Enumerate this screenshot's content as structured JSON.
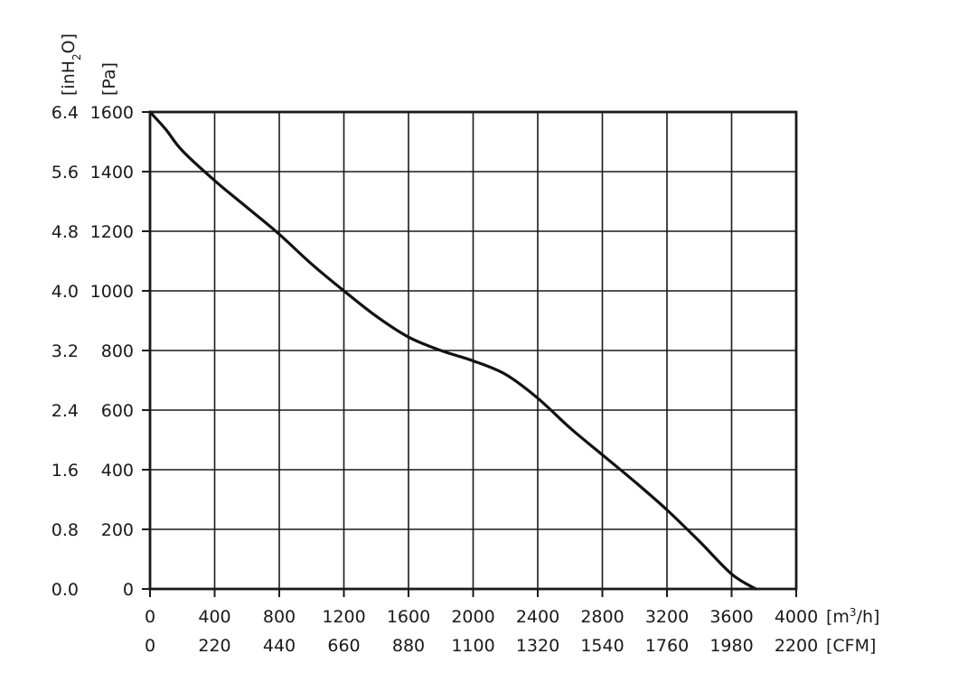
{
  "chart_data": {
    "type": "line",
    "x_unit": "[m³/h]",
    "x_unit_base": "[m",
    "x_unit_sup": "3",
    "x_unit_tail": "/h]",
    "x2_unit": "[CFM]",
    "y_unit": "[Pa]",
    "y2_unit": "[inH₂O]",
    "y2_unit_base": "[inH",
    "y2_unit_sub": "2",
    "y2_unit_tail": "O]",
    "xlim": [
      0,
      4000
    ],
    "ylim": [
      0,
      1600
    ],
    "x_ticks": [
      "0",
      "400",
      "800",
      "1200",
      "1600",
      "2000",
      "2400",
      "2800",
      "3200",
      "3600",
      "4000"
    ],
    "x2_ticks": [
      "0",
      "220",
      "440",
      "660",
      "880",
      "1100",
      "1320",
      "1540",
      "1760",
      "1980",
      "2200"
    ],
    "y_ticks": [
      "0",
      "200",
      "400",
      "600",
      "800",
      "1000",
      "1200",
      "1400",
      "1600"
    ],
    "y2_ticks": [
      "0.0",
      "0.8",
      "1.6",
      "2.4",
      "3.2",
      "4.0",
      "4.8",
      "5.6",
      "6.4"
    ],
    "grid": true,
    "series": [
      {
        "color": "#111111",
        "x": [
          0,
          100,
          200,
          400,
          600,
          800,
          1000,
          1200,
          1400,
          1600,
          1800,
          2000,
          2200,
          2400,
          2600,
          2800,
          3000,
          3200,
          3400,
          3600,
          3750
        ],
        "y": [
          1600,
          1540,
          1470,
          1370,
          1280,
          1190,
          1090,
          1000,
          915,
          845,
          800,
          765,
          720,
          640,
          540,
          450,
          360,
          265,
          160,
          50,
          0
        ]
      }
    ]
  }
}
